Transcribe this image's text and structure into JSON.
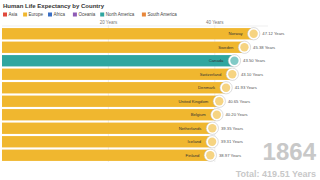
{
  "chart_data": {
    "type": "bar",
    "title": "Human Life Expectancy by Country",
    "orientation": "horizontal",
    "categories": [
      "Norway",
      "Sweden",
      "Canada",
      "Switzerland",
      "Denmark",
      "United Kingdom",
      "Belgium",
      "Netherlands",
      "Iceland",
      "Finland"
    ],
    "values": [
      47.12,
      45.38,
      43.5,
      43.1,
      41.93,
      40.65,
      40.2,
      39.35,
      39.31,
      38.97
    ],
    "value_labels": [
      "47.12 Years",
      "45.38 Years",
      "43.50 Years",
      "43.10 Years",
      "41.93 Years",
      "40.65 Years",
      "40.20 Years",
      "39.35 Years",
      "39.31 Years",
      "38.97 Years"
    ],
    "colors": [
      "#f0b72f",
      "#f0b72f",
      "#2fa6a0",
      "#f0b72f",
      "#f0b72f",
      "#f0b72f",
      "#f0b72f",
      "#f0b72f",
      "#f0b72f",
      "#f0b72f"
    ],
    "data_labels": true,
    "legend": "top-left",
    "legend_entries": [
      {
        "name": "Asia",
        "color": "#e0493c"
      },
      {
        "name": "Europe",
        "color": "#f0b72f"
      },
      {
        "name": "Africa",
        "color": "#3a6fc4"
      },
      {
        "name": "Oceania",
        "color": "#8e5bb5"
      },
      {
        "name": "North America",
        "color": "#2fa6a0"
      },
      {
        "name": "South America",
        "color": "#e8873a"
      }
    ],
    "xlim": [
      0,
      50
    ],
    "xticks": [
      {
        "value": 20,
        "label": "20 Years"
      },
      {
        "value": 40,
        "label": "40 Years"
      }
    ],
    "grid": true,
    "annotations": [
      "1864",
      "Total: 419.51 Years"
    ]
  }
}
